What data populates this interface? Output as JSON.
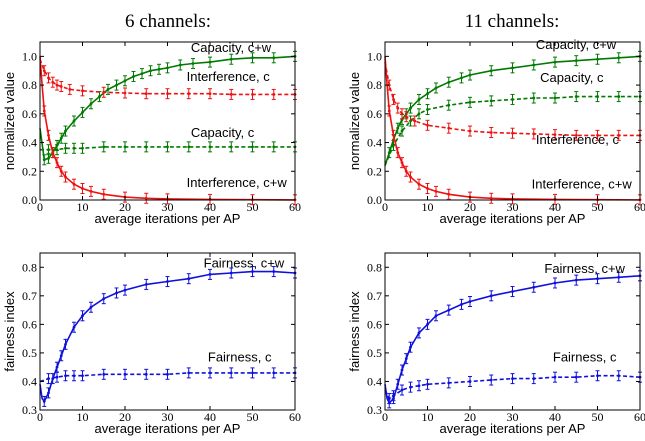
{
  "column_titles": [
    "6 channels:",
    "11 channels:"
  ],
  "colors": {
    "green": "#007a00",
    "red": "#ee1111",
    "blue": "#1010dd"
  },
  "chart_data": [
    {
      "id": "p1",
      "type": "line",
      "xlabel": "average iterations per AP",
      "ylabel": "normalized value",
      "xlim": [
        0,
        60
      ],
      "ylim": [
        0.0,
        1.1
      ],
      "xticks": [
        0,
        10,
        20,
        30,
        40,
        50,
        60
      ],
      "yticks": [
        0.0,
        0.2,
        0.4,
        0.6,
        0.8,
        1.0
      ],
      "grid": false,
      "series": [
        {
          "name": "Capacity, c+w",
          "color": "green",
          "dash": "solid",
          "x": [
            0,
            1,
            2,
            3,
            4,
            5,
            6,
            8,
            10,
            12,
            14,
            16,
            18,
            20,
            22,
            24,
            26,
            28,
            30,
            33,
            36,
            40,
            45,
            50,
            55,
            60
          ],
          "y": [
            0.5,
            0.28,
            0.29,
            0.33,
            0.38,
            0.43,
            0.48,
            0.55,
            0.61,
            0.67,
            0.72,
            0.77,
            0.8,
            0.83,
            0.86,
            0.88,
            0.9,
            0.91,
            0.92,
            0.94,
            0.95,
            0.96,
            0.98,
            0.99,
            0.99,
            1.0
          ]
        },
        {
          "name": "Capacity, c",
          "color": "green",
          "dash": "dashed",
          "x": [
            0,
            2,
            4,
            6,
            8,
            10,
            15,
            20,
            25,
            30,
            35,
            40,
            45,
            50,
            55,
            60
          ],
          "y": [
            0.35,
            0.35,
            0.35,
            0.36,
            0.36,
            0.36,
            0.37,
            0.37,
            0.37,
            0.37,
            0.37,
            0.37,
            0.37,
            0.37,
            0.37,
            0.37
          ]
        },
        {
          "name": "Interference, c",
          "color": "red",
          "dash": "dashed",
          "x": [
            0,
            1,
            2,
            3,
            4,
            5,
            7,
            10,
            15,
            20,
            25,
            30,
            35,
            40,
            45,
            50,
            55,
            60
          ],
          "y": [
            0.98,
            0.9,
            0.85,
            0.82,
            0.8,
            0.79,
            0.77,
            0.76,
            0.75,
            0.745,
            0.74,
            0.74,
            0.74,
            0.74,
            0.735,
            0.735,
            0.735,
            0.735
          ]
        },
        {
          "name": "Interference, c+w",
          "color": "red",
          "dash": "solid",
          "x": [
            0,
            0.5,
            1,
            2,
            3,
            4,
            5,
            6,
            8,
            10,
            12,
            15,
            20,
            25,
            30,
            40,
            50,
            60
          ],
          "y": [
            1.0,
            0.8,
            0.62,
            0.45,
            0.33,
            0.26,
            0.2,
            0.16,
            0.11,
            0.08,
            0.06,
            0.04,
            0.02,
            0.012,
            0.008,
            0.004,
            0.002,
            0.001
          ]
        }
      ],
      "annotations": [
        {
          "text": "Capacity, c+w",
          "x": 35.5,
          "y": 1.03
        },
        {
          "text": "Interference, c",
          "x": 34.5,
          "y": 0.83
        },
        {
          "text": "Capacity, c",
          "x": 35.5,
          "y": 0.44
        },
        {
          "text": "Interference, c+w",
          "x": 34.5,
          "y": 0.09
        }
      ]
    },
    {
      "id": "p2",
      "type": "line",
      "xlabel": "average iterations per AP",
      "ylabel": "normalized value",
      "xlim": [
        0,
        60
      ],
      "ylim": [
        0.0,
        1.1
      ],
      "xticks": [
        0,
        10,
        20,
        30,
        40,
        50,
        60
      ],
      "yticks": [
        0.0,
        0.2,
        0.4,
        0.6,
        0.8,
        1.0
      ],
      "grid": false,
      "series": [
        {
          "name": "Capacity, c+w",
          "color": "green",
          "dash": "solid",
          "x": [
            0,
            1,
            2,
            3,
            4,
            5,
            6,
            8,
            10,
            12,
            15,
            18,
            20,
            25,
            30,
            35,
            40,
            45,
            50,
            55,
            60
          ],
          "y": [
            0.24,
            0.33,
            0.42,
            0.5,
            0.56,
            0.6,
            0.64,
            0.7,
            0.74,
            0.78,
            0.82,
            0.85,
            0.87,
            0.9,
            0.92,
            0.94,
            0.96,
            0.97,
            0.98,
            0.99,
            1.0
          ]
        },
        {
          "name": "Capacity, c",
          "color": "green",
          "dash": "dashed",
          "x": [
            0,
            2,
            4,
            6,
            8,
            10,
            15,
            20,
            25,
            30,
            35,
            40,
            45,
            50,
            55,
            60
          ],
          "y": [
            0.24,
            0.38,
            0.48,
            0.55,
            0.6,
            0.63,
            0.66,
            0.68,
            0.69,
            0.7,
            0.71,
            0.71,
            0.72,
            0.72,
            0.72,
            0.72
          ]
        },
        {
          "name": "Interference, c",
          "color": "red",
          "dash": "dashed",
          "x": [
            0,
            1,
            2,
            3,
            4,
            5,
            7,
            10,
            15,
            20,
            25,
            30,
            35,
            40,
            45,
            50,
            55,
            60
          ],
          "y": [
            0.96,
            0.8,
            0.7,
            0.64,
            0.6,
            0.58,
            0.55,
            0.52,
            0.5,
            0.48,
            0.47,
            0.465,
            0.46,
            0.455,
            0.45,
            0.45,
            0.45,
            0.45
          ]
        },
        {
          "name": "Interference, c+w",
          "color": "red",
          "dash": "solid",
          "x": [
            0,
            0.5,
            1,
            2,
            3,
            4,
            5,
            6,
            8,
            10,
            12,
            15,
            20,
            25,
            30,
            40,
            50,
            60
          ],
          "y": [
            1.0,
            0.8,
            0.62,
            0.45,
            0.33,
            0.26,
            0.2,
            0.16,
            0.11,
            0.08,
            0.06,
            0.04,
            0.02,
            0.012,
            0.008,
            0.004,
            0.002,
            0.001
          ]
        }
      ],
      "annotations": [
        {
          "text": "Capacity, c+w",
          "x": 35.5,
          "y": 1.05
        },
        {
          "text": "Capacity, c",
          "x": 36.5,
          "y": 0.82
        },
        {
          "text": "Interference, c",
          "x": 35.5,
          "y": 0.39
        },
        {
          "text": "Interference, c+w",
          "x": 34.5,
          "y": 0.08
        }
      ]
    },
    {
      "id": "p3",
      "type": "line",
      "xlabel": "average iterations per AP",
      "ylabel": "fairness index",
      "xlim": [
        0,
        60
      ],
      "ylim": [
        0.3,
        0.85
      ],
      "xticks": [
        0,
        10,
        20,
        30,
        40,
        50,
        60
      ],
      "yticks": [
        0.3,
        0.4,
        0.5,
        0.6,
        0.7,
        0.8
      ],
      "grid": false,
      "series": [
        {
          "name": "Fairness, c+w",
          "color": "blue",
          "dash": "solid",
          "x": [
            0,
            0.5,
            1,
            2,
            3,
            4,
            5,
            6,
            8,
            10,
            12,
            15,
            18,
            20,
            25,
            30,
            35,
            40,
            45,
            50,
            55,
            60
          ],
          "y": [
            0.39,
            0.34,
            0.33,
            0.36,
            0.41,
            0.45,
            0.49,
            0.53,
            0.59,
            0.63,
            0.66,
            0.69,
            0.71,
            0.72,
            0.74,
            0.75,
            0.76,
            0.775,
            0.78,
            0.785,
            0.785,
            0.78
          ]
        },
        {
          "name": "Fairness, c",
          "color": "blue",
          "dash": "dashed",
          "x": [
            0,
            2,
            4,
            6,
            8,
            10,
            15,
            20,
            25,
            30,
            35,
            40,
            45,
            50,
            55,
            60
          ],
          "y": [
            0.4,
            0.41,
            0.415,
            0.42,
            0.42,
            0.42,
            0.425,
            0.425,
            0.425,
            0.425,
            0.43,
            0.43,
            0.43,
            0.43,
            0.43,
            0.43
          ]
        }
      ],
      "annotations": [
        {
          "text": "Fairness, c+w",
          "x": 38.5,
          "y": 0.8
        },
        {
          "text": "Fairness, c",
          "x": 39.5,
          "y": 0.47
        }
      ]
    },
    {
      "id": "p4",
      "type": "line",
      "xlabel": "average iterations per AP",
      "ylabel": "fairness index",
      "xlim": [
        0,
        60
      ],
      "ylim": [
        0.3,
        0.85
      ],
      "xticks": [
        0,
        10,
        20,
        30,
        40,
        50,
        60
      ],
      "yticks": [
        0.3,
        0.4,
        0.5,
        0.6,
        0.7,
        0.8
      ],
      "grid": false,
      "series": [
        {
          "name": "Fairness, c+w",
          "color": "blue",
          "dash": "solid",
          "x": [
            0,
            0.5,
            1,
            2,
            3,
            4,
            5,
            6,
            8,
            10,
            12,
            15,
            18,
            20,
            25,
            30,
            35,
            40,
            45,
            50,
            55,
            60
          ],
          "y": [
            0.39,
            0.34,
            0.325,
            0.34,
            0.39,
            0.44,
            0.48,
            0.52,
            0.57,
            0.6,
            0.63,
            0.65,
            0.67,
            0.68,
            0.7,
            0.715,
            0.73,
            0.745,
            0.755,
            0.76,
            0.765,
            0.77
          ]
        },
        {
          "name": "Fairness, c",
          "color": "blue",
          "dash": "dashed",
          "x": [
            0,
            1,
            2,
            4,
            6,
            8,
            10,
            15,
            20,
            25,
            30,
            35,
            40,
            45,
            50,
            55,
            60
          ],
          "y": [
            0.37,
            0.34,
            0.35,
            0.37,
            0.38,
            0.385,
            0.39,
            0.395,
            0.4,
            0.405,
            0.41,
            0.41,
            0.415,
            0.415,
            0.42,
            0.42,
            0.415
          ]
        }
      ],
      "annotations": [
        {
          "text": "Fairness, c+w",
          "x": 37.5,
          "y": 0.78
        },
        {
          "text": "Fairness, c",
          "x": 39.5,
          "y": 0.47
        }
      ]
    }
  ]
}
